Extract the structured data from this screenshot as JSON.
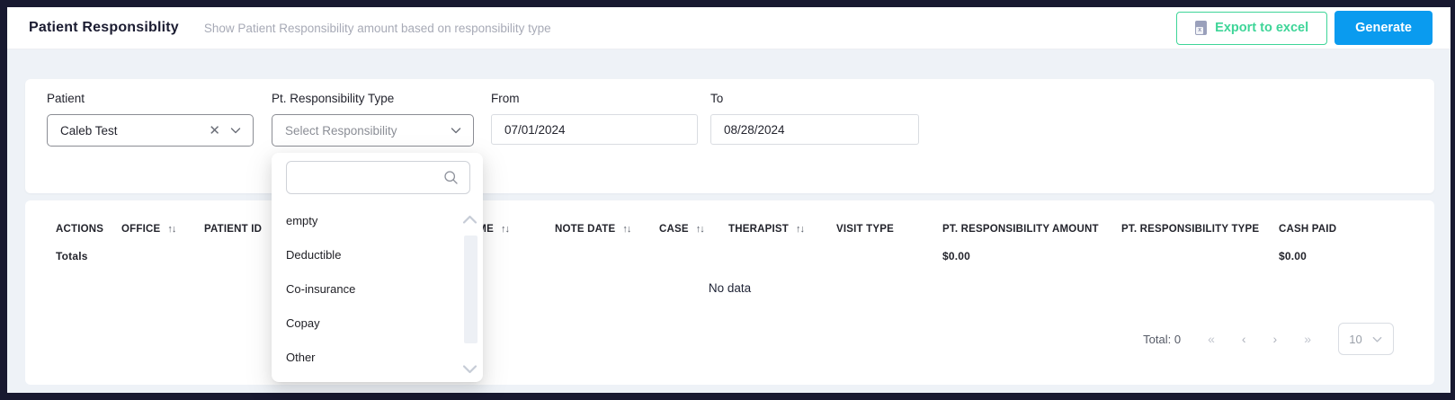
{
  "header": {
    "title": "Patient Responsiblity",
    "subtitle": "Show Patient Responsibility amount based on responsibility type",
    "export_label": "Export to excel",
    "export_icon_letter": "x",
    "generate_label": "Generate"
  },
  "filters": {
    "patient": {
      "label": "Patient",
      "value": "Caleb Test",
      "clear_icon": "✕"
    },
    "responsibility_type": {
      "label": "Pt. Responsibility Type",
      "placeholder": "Select Responsibility"
    },
    "from": {
      "label": "From",
      "value": "07/01/2024"
    },
    "to": {
      "label": "To",
      "value": "08/28/2024"
    }
  },
  "dropdown": {
    "search_value": "",
    "search_placeholder": "",
    "options": [
      "empty",
      "Deductible",
      "Co-insurance",
      "Copay",
      "Other"
    ]
  },
  "table": {
    "sort_icon": "↑↓",
    "columns": [
      {
        "label": "ACTIONS",
        "sortable": false
      },
      {
        "label": "OFFICE",
        "sortable": true
      },
      {
        "label": "PATIENT ID",
        "sortable": false
      },
      {
        "label": "PATIENT NAME",
        "sortable": true
      },
      {
        "label": "NOTE DATE",
        "sortable": true
      },
      {
        "label": "CASE",
        "sortable": true
      },
      {
        "label": "THERAPIST",
        "sortable": true
      },
      {
        "label": "VISIT TYPE",
        "sortable": false
      },
      {
        "label": "PT. RESPONSIBILITY AMOUNT",
        "sortable": false
      },
      {
        "label": "PT. RESPONSIBILITY TYPE",
        "sortable": false
      },
      {
        "label": "CASH PAID",
        "sortable": false
      }
    ],
    "totals_label": "Totals",
    "totals": {
      "pt_responsibility_amount": "$0.00",
      "cash_paid": "$0.00"
    },
    "empty_text": "No data"
  },
  "pagination": {
    "total_label": "Total: 0",
    "first_icon": "«",
    "prev_icon": "‹",
    "next_icon": "›",
    "last_icon": "»",
    "page_size": "10"
  },
  "colors": {
    "accent_green": "#3ed598",
    "accent_blue": "#0a9bef",
    "frame_dark": "#181930",
    "page_bg": "#eef2f7"
  }
}
